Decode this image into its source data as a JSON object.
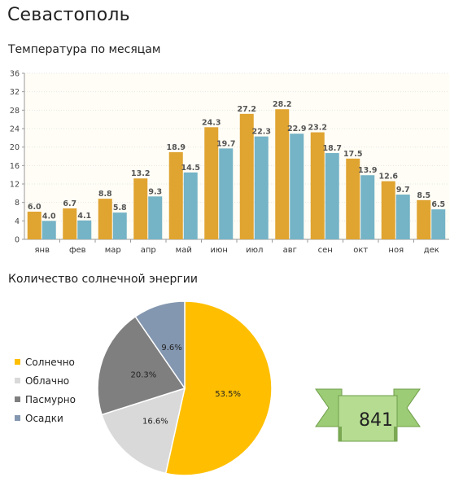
{
  "page": {
    "title": "Севастополь",
    "temp_title": "Температура по месяцам",
    "sun_title": "Количество солнечной энергии"
  },
  "chart_data": [
    {
      "type": "bar",
      "categories": [
        "янв",
        "фев",
        "мар",
        "апр",
        "май",
        "июн",
        "июл",
        "авг",
        "сен",
        "окт",
        "ноя",
        "дек"
      ],
      "series": [
        {
          "color": "#e0a431",
          "values": [
            6.0,
            6.7,
            8.8,
            13.2,
            18.9,
            24.3,
            27.2,
            28.2,
            23.2,
            17.5,
            12.6,
            8.5
          ]
        },
        {
          "color": "#75b3c6",
          "values": [
            4.0,
            4.1,
            5.8,
            9.3,
            14.5,
            19.7,
            22.3,
            22.9,
            18.7,
            13.9,
            9.7,
            6.5
          ]
        }
      ],
      "yticks": [
        0,
        4,
        8,
        12,
        16,
        20,
        24,
        28,
        32,
        36
      ],
      "ylim": [
        0,
        36
      ],
      "grid": true,
      "title": "Температура по месяцам"
    },
    {
      "type": "pie",
      "title": "Количество солнечной энергии",
      "legend_position": "left",
      "slices": [
        {
          "name": "Солнечно",
          "value": 53.5,
          "label": "53.5%",
          "color": "#ffbf00"
        },
        {
          "name": "Облачно",
          "value": 16.6,
          "label": "16.6%",
          "color": "#d9d9d9"
        },
        {
          "name": "Пасмурно",
          "value": 20.3,
          "label": "20.3%",
          "color": "#7f7f7f"
        },
        {
          "name": "Осадки",
          "value": 9.6,
          "label": "9.6%",
          "color": "#8497b0"
        }
      ]
    }
  ],
  "badge": {
    "value": "841"
  }
}
